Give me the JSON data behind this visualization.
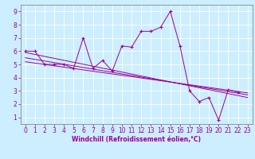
{
  "xlabel": "Windchill (Refroidissement éolien,°C)",
  "bg_color": "#cceeff",
  "line_color": "#990099",
  "xlim": [
    -0.5,
    23.5
  ],
  "ylim": [
    0.5,
    9.5
  ],
  "xticks": [
    0,
    1,
    2,
    3,
    4,
    5,
    6,
    7,
    8,
    9,
    10,
    11,
    12,
    13,
    14,
    15,
    16,
    17,
    18,
    19,
    20,
    21,
    22,
    23
  ],
  "yticks": [
    1,
    2,
    3,
    4,
    5,
    6,
    7,
    8,
    9
  ],
  "series1_x": [
    0,
    1,
    2,
    3,
    4,
    5,
    6,
    7,
    8,
    9,
    10,
    11,
    12,
    13,
    14,
    15,
    16,
    17,
    18,
    19,
    20,
    21,
    22
  ],
  "series1_y": [
    6.0,
    6.0,
    5.0,
    5.0,
    5.0,
    4.7,
    7.0,
    4.7,
    5.3,
    4.5,
    6.4,
    6.3,
    7.5,
    7.5,
    7.8,
    9.0,
    6.4,
    3.0,
    2.2,
    2.5,
    0.8,
    3.1,
    2.9
  ],
  "trend1_x": [
    0,
    23
  ],
  "trend1_y": [
    5.9,
    2.5
  ],
  "trend2_x": [
    0,
    23
  ],
  "trend2_y": [
    5.5,
    2.7
  ],
  "trend3_x": [
    0,
    23
  ],
  "trend3_y": [
    5.2,
    2.85
  ],
  "grid_color": "#ffffff",
  "font_color": "#990099",
  "tick_fontsize": 5.5,
  "label_fontsize": 5.5
}
